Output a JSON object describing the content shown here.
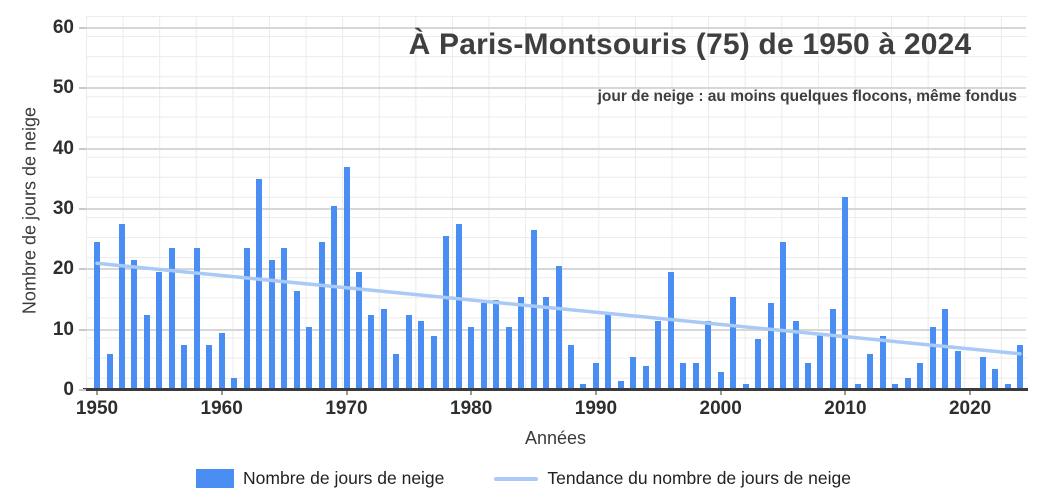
{
  "title": "À Paris-Montsouris (75) de 1950 à 2024",
  "subtitle": "jour de neige : au moins quelques flocons, même fondus",
  "legend": {
    "bars_label": "Nombre de jours de neige",
    "trend_label": "Tendance du nombre de jours de neige"
  },
  "chart_data": {
    "type": "bar",
    "title": "À Paris-Montsouris (75) de 1950 à 2024",
    "subtitle": "jour de neige : au moins quelques flocons, même fondus",
    "xlabel": "Années",
    "ylabel": "Nombre de jours de neige",
    "ylim": [
      0,
      60
    ],
    "yticks": [
      0,
      10,
      20,
      30,
      40,
      50,
      60
    ],
    "xticks": [
      1950,
      1960,
      1970,
      1980,
      1990,
      2000,
      2010,
      2020
    ],
    "grid": true,
    "legend_position": "bottom",
    "year_start": 1950,
    "year_end": 2024,
    "series_name": "Nombre de jours de neige",
    "values": [
      24.5,
      6,
      27.5,
      21.5,
      12.5,
      19.5,
      23.5,
      7.5,
      23.5,
      7.5,
      9.5,
      2,
      23.5,
      35,
      21.5,
      23.5,
      16.5,
      10.5,
      24.5,
      30.5,
      37,
      19.5,
      12.5,
      13.5,
      6,
      12.5,
      11.5,
      9,
      25.5,
      27.5,
      10.5,
      14.5,
      15,
      10.5,
      15.5,
      26.5,
      15.5,
      20.5,
      7.5,
      1,
      4.5,
      12.5,
      1.5,
      5.5,
      4,
      11.5,
      19.5,
      4.5,
      4.5,
      11.5,
      3,
      15.5,
      1,
      8.5,
      14.5,
      24.5,
      11.5,
      4.5,
      9.5,
      13.5,
      32,
      1,
      6,
      9,
      1,
      2,
      4.5,
      10.5,
      13.5,
      6.5,
      0,
      5.5,
      3.5,
      1,
      7.5
    ],
    "trend": {
      "name": "Tendance du nombre de jours de neige",
      "start": {
        "x": 1950,
        "y": 21
      },
      "end": {
        "x": 2024,
        "y": 6
      }
    },
    "colors": {
      "bar": "#4a8ef4",
      "trend": "#a9c9f6"
    }
  }
}
